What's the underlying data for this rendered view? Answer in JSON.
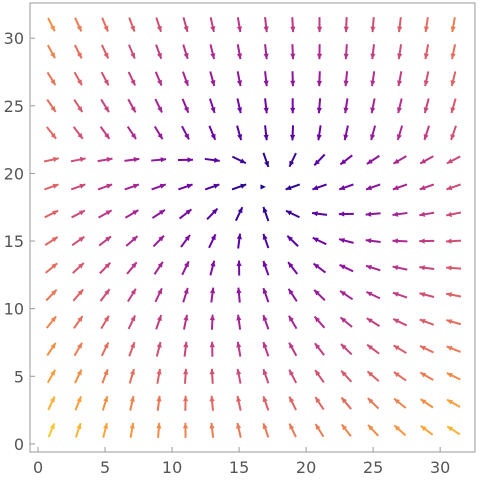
{
  "chart_data": {
    "type": "vector_field",
    "title": "",
    "xlabel": "",
    "ylabel": "",
    "xlim": [
      -0.6,
      32.6
    ],
    "ylim": [
      -0.6,
      32.6
    ],
    "x_ticks": [
      0,
      5,
      10,
      15,
      20,
      25,
      30
    ],
    "y_ticks": [
      0,
      5,
      10,
      15,
      20,
      25,
      30
    ],
    "x_tick_labels": [
      "0",
      "5",
      "10",
      "15",
      "20",
      "25",
      "30"
    ],
    "y_tick_labels": [
      "0",
      "5",
      "10",
      "15",
      "20",
      "25",
      "30"
    ],
    "grid": false,
    "frame": true,
    "grid_step": 2,
    "x_range": [
      1,
      31
    ],
    "y_range": [
      1,
      31
    ],
    "color_scheme": [
      "#0d0887",
      "#6a00a8",
      "#b12a90",
      "#e16462",
      "#fca636",
      "#f0f921"
    ],
    "field_description": "arrows converge toward a sink near (17, 19); magnitude (color) grows with distance from the sink",
    "sink": [
      17,
      19
    ]
  }
}
